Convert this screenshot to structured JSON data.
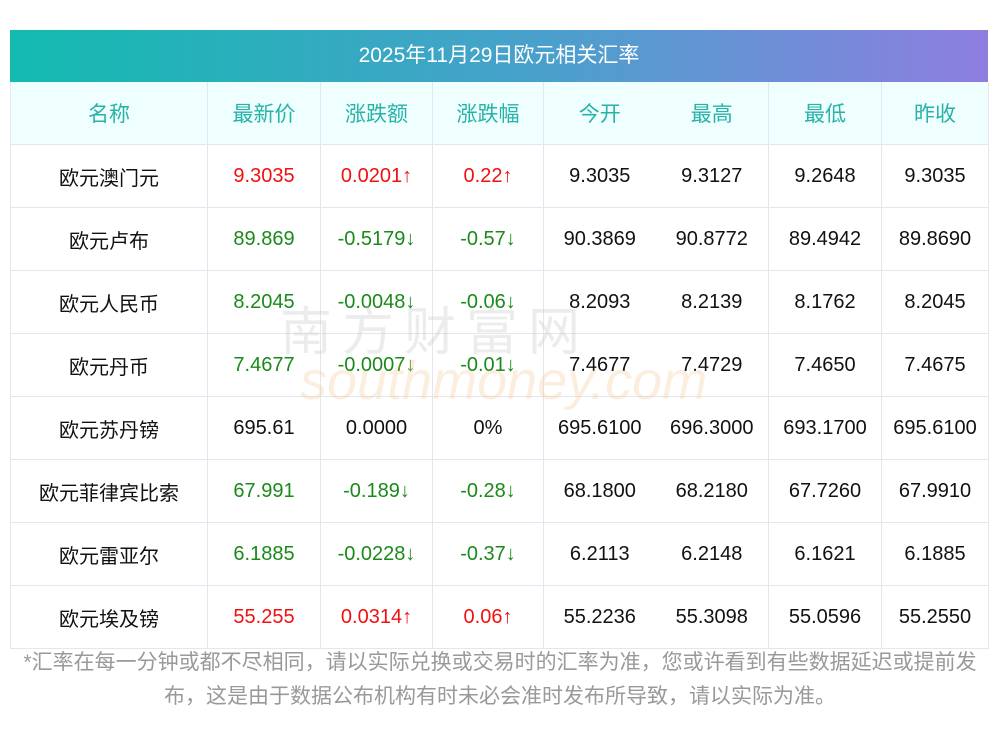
{
  "title": "2025年11月29日欧元相关汇率",
  "headers": [
    "名称",
    "最新价",
    "涨跌额",
    "涨跌幅",
    "今开",
    "最高",
    "最低",
    "昨收"
  ],
  "rows": [
    {
      "name": "欧元澳门元",
      "latest": "9.3035",
      "change": "0.0201↑",
      "pct": "0.22↑",
      "open": "9.3035",
      "high": "9.3127",
      "low": "9.2648",
      "prev": "9.3035",
      "dir": "up"
    },
    {
      "name": "欧元卢布",
      "latest": "89.869",
      "change": "-0.5179↓",
      "pct": "-0.57↓",
      "open": "90.3869",
      "high": "90.8772",
      "low": "89.4942",
      "prev": "89.8690",
      "dir": "down"
    },
    {
      "name": "欧元人民币",
      "latest": "8.2045",
      "change": "-0.0048↓",
      "pct": "-0.06↓",
      "open": "8.2093",
      "high": "8.2139",
      "low": "8.1762",
      "prev": "8.2045",
      "dir": "down"
    },
    {
      "name": "欧元丹币",
      "latest": "7.4677",
      "change": "-0.0007↓",
      "pct": "-0.01↓",
      "open": "7.4677",
      "high": "7.4729",
      "low": "7.4650",
      "prev": "7.4675",
      "dir": "down"
    },
    {
      "name": "欧元苏丹镑",
      "latest": "695.61",
      "change": "0.0000",
      "pct": "0%",
      "open": "695.6100",
      "high": "696.3000",
      "low": "693.1700",
      "prev": "695.6100",
      "dir": "flat"
    },
    {
      "name": "欧元菲律宾比索",
      "latest": "67.991",
      "change": "-0.189↓",
      "pct": "-0.28↓",
      "open": "68.1800",
      "high": "68.2180",
      "low": "67.7260",
      "prev": "67.9910",
      "dir": "down"
    },
    {
      "name": "欧元雷亚尔",
      "latest": "6.1885",
      "change": "-0.0228↓",
      "pct": "-0.37↓",
      "open": "6.2113",
      "high": "6.2148",
      "low": "6.1621",
      "prev": "6.1885",
      "dir": "down"
    },
    {
      "name": "欧元埃及镑",
      "latest": "55.255",
      "change": "0.0314↑",
      "pct": "0.06↑",
      "open": "55.2236",
      "high": "55.3098",
      "low": "55.0596",
      "prev": "55.2550",
      "dir": "up"
    }
  ],
  "note": "*汇率在每一分钟或都不尽相同，请以实际兑换或交易时的汇率为准，您或许看到有些数据延迟或提前发布，这是由于数据公布机构有时未必会准时发布所导致，请以实际为准。",
  "watermark": {
    "cn": "南方财富网",
    "en": "southmoney.com"
  },
  "colors": {
    "up": "#f01010",
    "down": "#1a8a1a",
    "header": "#27b3a8"
  }
}
